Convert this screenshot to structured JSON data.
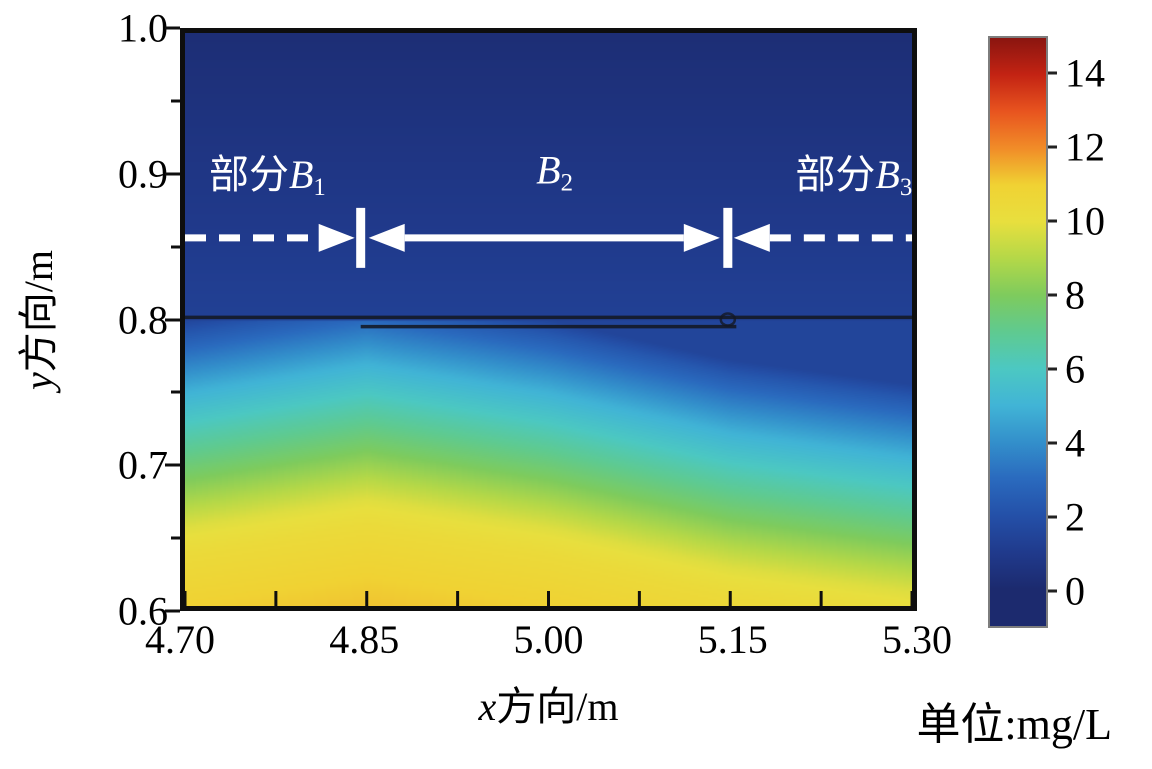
{
  "chart_data": {
    "type": "heatmap",
    "xlabel_var": "x",
    "xlabel_text": "方向/m",
    "ylabel_var": "y",
    "ylabel_text": "方向/m",
    "x_range": [
      4.7,
      5.3
    ],
    "y_range": [
      0.6,
      1.0
    ],
    "x_ticks": [
      "4.70",
      "4.85",
      "5.00",
      "5.15",
      "5.30"
    ],
    "x_minor_count": 8,
    "y_ticks": [
      "1.0",
      "0.9",
      "0.8",
      "0.7",
      "0.6"
    ],
    "colorbar": {
      "unit": "单位:mg/L",
      "ticks": [
        14,
        12,
        10,
        8,
        6,
        4,
        2,
        0
      ],
      "scale_min": -1,
      "scale_max": 15
    },
    "colormap": [
      {
        "v": 0,
        "color": "#1c2a6e"
      },
      {
        "v": 1,
        "color": "#203a8c"
      },
      {
        "v": 2,
        "color": "#2450a8"
      },
      {
        "v": 3,
        "color": "#2a6abe"
      },
      {
        "v": 4,
        "color": "#338fcb"
      },
      {
        "v": 5,
        "color": "#41b4d6"
      },
      {
        "v": 6,
        "color": "#4cc8c2"
      },
      {
        "v": 7,
        "color": "#5fca90"
      },
      {
        "v": 8,
        "color": "#7ecb5d"
      },
      {
        "v": 9,
        "color": "#b4d848"
      },
      {
        "v": 10,
        "color": "#e8df3e"
      },
      {
        "v": 11,
        "color": "#f0d233"
      },
      {
        "v": 12,
        "color": "#f18c28"
      },
      {
        "v": 13,
        "color": "#e8541f"
      },
      {
        "v": 14,
        "color": "#c32313"
      },
      {
        "v": 15,
        "color": "#8a1510"
      }
    ],
    "field": {
      "membrane_y": 0.8,
      "above_near": 1.3,
      "above_top": 0.25,
      "shift_x": [
        4.7,
        4.85,
        5.0,
        5.15,
        5.3
      ],
      "shift_y": [
        0.0,
        0.02,
        0.0,
        -0.028,
        -0.045
      ],
      "profile": [
        [
          0,
          1.5
        ],
        [
          0.01,
          2.3
        ],
        [
          0.03,
          3.6
        ],
        [
          0.05,
          4.9
        ],
        [
          0.08,
          6.4
        ],
        [
          0.11,
          7.9
        ],
        [
          0.145,
          9.8
        ],
        [
          0.165,
          10.4
        ],
        [
          0.2,
          11.0
        ],
        [
          0.27,
          11.7
        ]
      ]
    },
    "membrane_lines": [
      {
        "y": 0.8015,
        "x1": 4.7,
        "x2": 5.3
      },
      {
        "y": 0.795,
        "x1": 4.845,
        "x2": 5.155
      }
    ],
    "membrane_dot": {
      "x": 5.148,
      "y": 0.8
    },
    "annotations": {
      "region1": {
        "prefix": "部分",
        "letter": "B",
        "sub": "1"
      },
      "region2": {
        "prefix": "",
        "letter": "B",
        "sub": "2"
      },
      "region3": {
        "prefix": "部分",
        "letter": "B",
        "sub": "3"
      },
      "divider_x": [
        4.845,
        5.148
      ],
      "arrow_y": 0.857,
      "label_x": [
        4.768,
        5.005,
        5.252
      ],
      "label_y": 0.903
    }
  }
}
